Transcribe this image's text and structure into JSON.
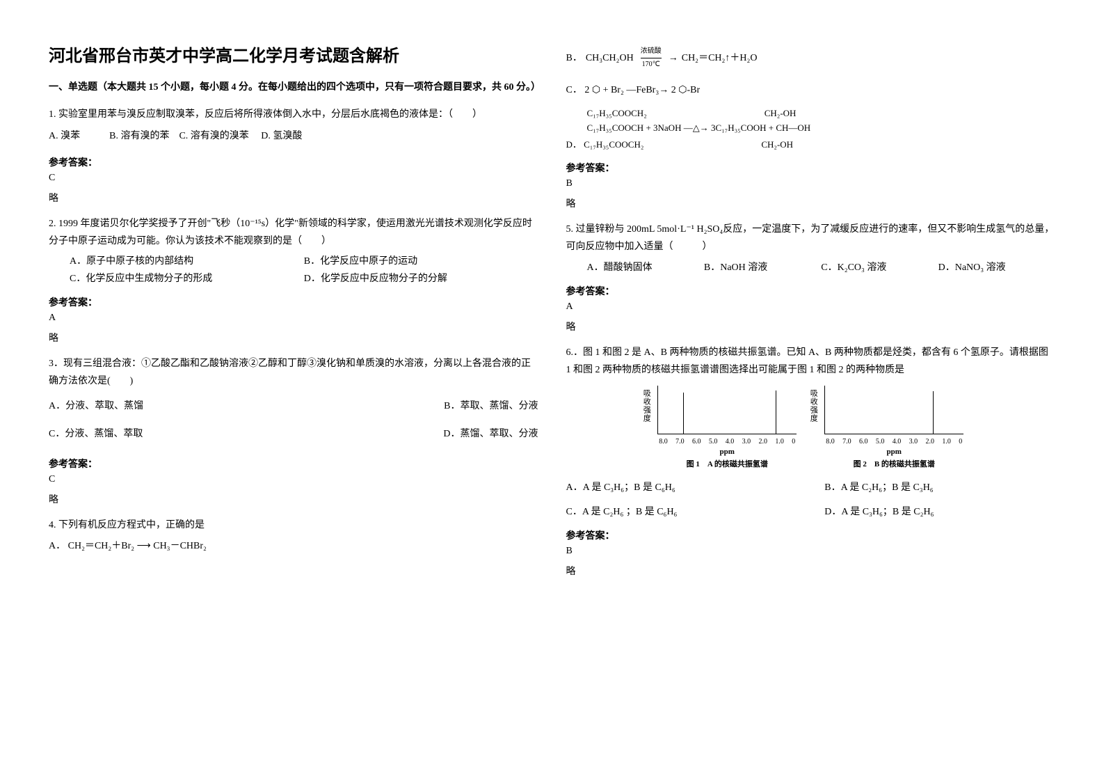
{
  "title": "河北省邢台市英才中学高二化学月考试题含解析",
  "section1_header": "一、单选题（本大题共 15 个小题，每小题 4 分。在每小题给出的四个选项中，只有一项符合题目要求，共 60 分。）",
  "q1": {
    "stem": "1. 实验室里用苯与溴反应制取溴苯，反应后将所得液体倒入水中，分层后水底褐色的液体是：（　　）",
    "options": "A. 溴苯　　　B. 溶有溴的苯　C. 溶有溴的溴苯　 D. 氢溴酸",
    "answer_label": "参考答案：",
    "answer": "C",
    "explain": "略"
  },
  "q2": {
    "stem": "2. 1999 年度诺贝尔化学奖授予了开创\"飞秒（10⁻¹⁵s）化学\"新领域的科学家，使运用激光光谱技术观测化学反应时分子中原子运动成为可能。你认为该技术不能观察到的是（　　）",
    "optA": "A．原子中原子核的内部结构",
    "optB": "B．化学反应中原子的运动",
    "optC": "C．化学反应中生成物分子的形成",
    "optD": "D．化学反应中反应物分子的分解",
    "answer_label": "参考答案：",
    "answer": "A",
    "explain": "略"
  },
  "q3": {
    "stem": "3．现有三组混合液：①乙酸乙酯和乙酸钠溶液②乙醇和丁醇③溴化钠和单质溴的水溶液，分离以上各混合液的正确方法依次是(　　)",
    "optA": "A．分液、萃取、蒸馏",
    "optB": "B．萃取、蒸馏、分液",
    "optC": "C．分液、蒸馏、萃取",
    "optD": "D．蒸馏、萃取、分液",
    "answer_label": "参考答案：",
    "answer": "C",
    "explain": "略"
  },
  "q4": {
    "stem": "4. 下列有机反应方程式中，正确的是",
    "optA_prefix": "A．",
    "optA_formula": "CH₂＝CH₂＋Br₂ ⟶ CH₃－CHBr₂",
    "optB_prefix": "B．",
    "optB_formula1": "CH₃CH₂OH",
    "optB_arrow_top": "浓硫酸",
    "optB_arrow_bot": "170℃",
    "optB_formula2": "CH₂＝CH₂↑＋H₂O",
    "optC_prefix": "C．",
    "optC_formula": "2 ⬡ + Br₂ —FeBr₃→ 2 ⬡-Br",
    "optD_prefix": "D．",
    "optD_line1": "C₁₇H₃₅COOCH₂　　　　　　　　　　　　　CH₂-OH",
    "optD_line2": "C₁₇H₃₅COOCH + 3NaOH —△→ 3C₁₇H₃₅COOH + CH—OH",
    "optD_line3": "C₁₇H₃₅COOCH₂　　　　　　　　　　　　　CH₂-OH",
    "answer_label": "参考答案：",
    "answer": "B",
    "explain": "略"
  },
  "q5": {
    "stem": "5. 过量锌粉与 200mL 5mol·L⁻¹ H₂SO₄反应，一定温度下，为了减缓反应进行的速率，但又不影响生成氢气的总量，可向反应物中加入适量（　　　）",
    "optA": "A．醋酸钠固体",
    "optB": "B．NaOH 溶液",
    "optC": "C．K₂CO₃ 溶液",
    "optD": "D．NaNO₃ 溶液",
    "answer_label": "参考答案：",
    "answer": "A",
    "explain": "略"
  },
  "q6": {
    "stem": "6.．图 1 和图 2 是 A、B 两种物质的核磁共振氢谱。已知 A、B 两种物质都是烃类，都含有 6 个氢原子。请根据图 1 和图 2 两种物质的核磁共振氢谱谱图选择出可能属于图 1 和图 2 的两种物质是",
    "chart1": {
      "ylabel": "吸收强度",
      "xticks": [
        "8.0",
        "7.0",
        "6.0",
        "5.0",
        "4.0",
        "3.0",
        "2.0",
        "1.0",
        "0"
      ],
      "xlabel": "ppm",
      "caption": "图 1　A 的核磁共振氢谱",
      "peaks": [
        {
          "x_percent": 18,
          "height_percent": 85
        },
        {
          "x_percent": 85,
          "height_percent": 90
        }
      ]
    },
    "chart2": {
      "ylabel": "吸收强度",
      "xticks": [
        "8.0",
        "7.0",
        "6.0",
        "5.0",
        "4.0",
        "3.0",
        "2.0",
        "1.0",
        "0"
      ],
      "xlabel": "ppm",
      "caption": "图 2　B 的核磁共振氢谱",
      "peaks": [
        {
          "x_percent": 78,
          "height_percent": 88
        }
      ]
    },
    "optA": "A．A 是 C₃H₆；B 是 C₆H₆",
    "optB": "B．A 是 C₂H₆；B 是 C₃H₆",
    "optC": "C．A 是 C₂H₆ ；B 是 C₆H₆",
    "optD": "D．A 是 C₃H₆；B 是 C₂H₆",
    "answer_label": "参考答案：",
    "answer": "B",
    "explain": "略"
  }
}
